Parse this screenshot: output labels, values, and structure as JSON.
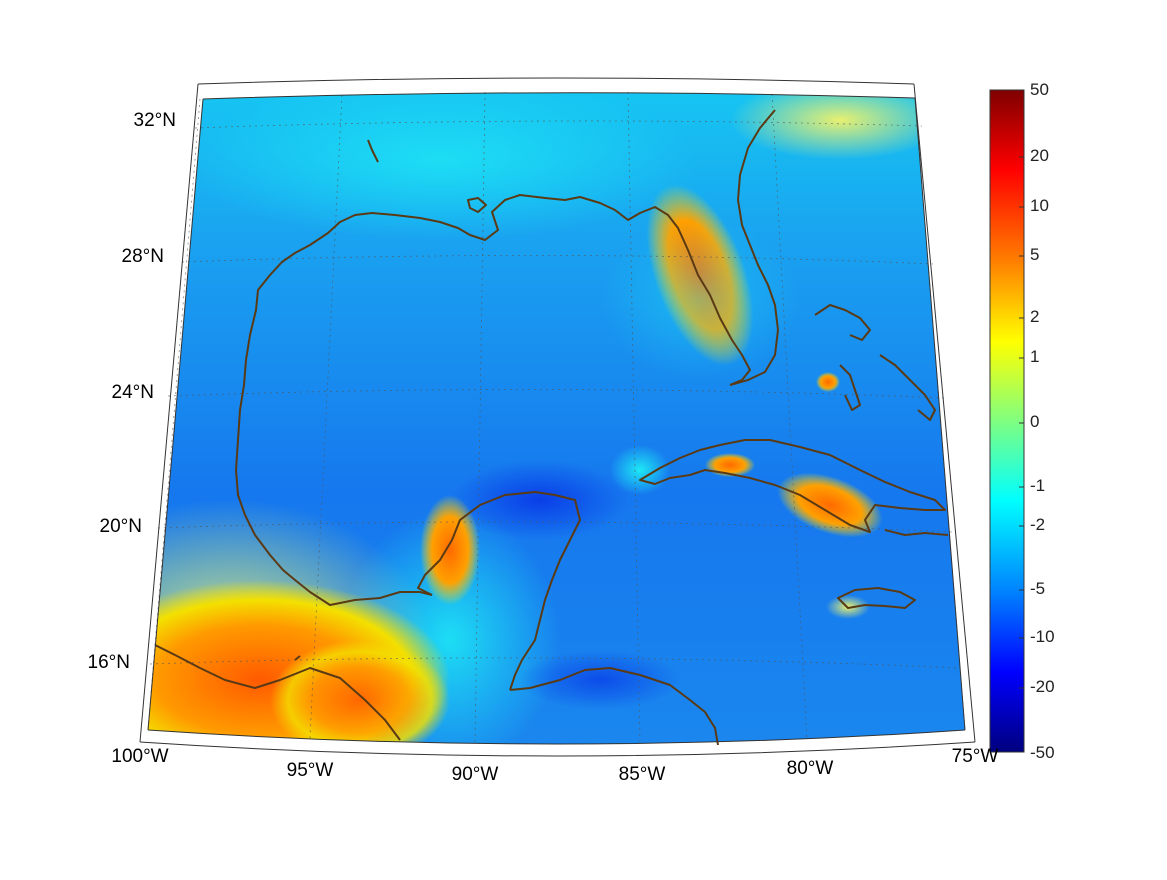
{
  "map": {
    "region": "Gulf of Mexico and Caribbean",
    "lat_labels": [
      "32°N",
      "28°N",
      "24°N",
      "20°N",
      "16°N"
    ],
    "lon_labels": [
      "100°W",
      "95°W",
      "90°W",
      "85°W",
      "80°W",
      "75°W"
    ],
    "coastline_color": "#5a3a14",
    "grid": "dotted"
  },
  "colorbar": {
    "ticks": [
      "50",
      "20",
      "10",
      "5",
      "2",
      "1",
      "0",
      "-1",
      "-2",
      "-5",
      "-10",
      "-20",
      "-50"
    ],
    "colormap": "jet",
    "colors": [
      "#7f0000",
      "#ff0000",
      "#ff8000",
      "#ffff00",
      "#80ff80",
      "#00ffff",
      "#0080ff",
      "#0000ff",
      "#00007f"
    ]
  }
}
